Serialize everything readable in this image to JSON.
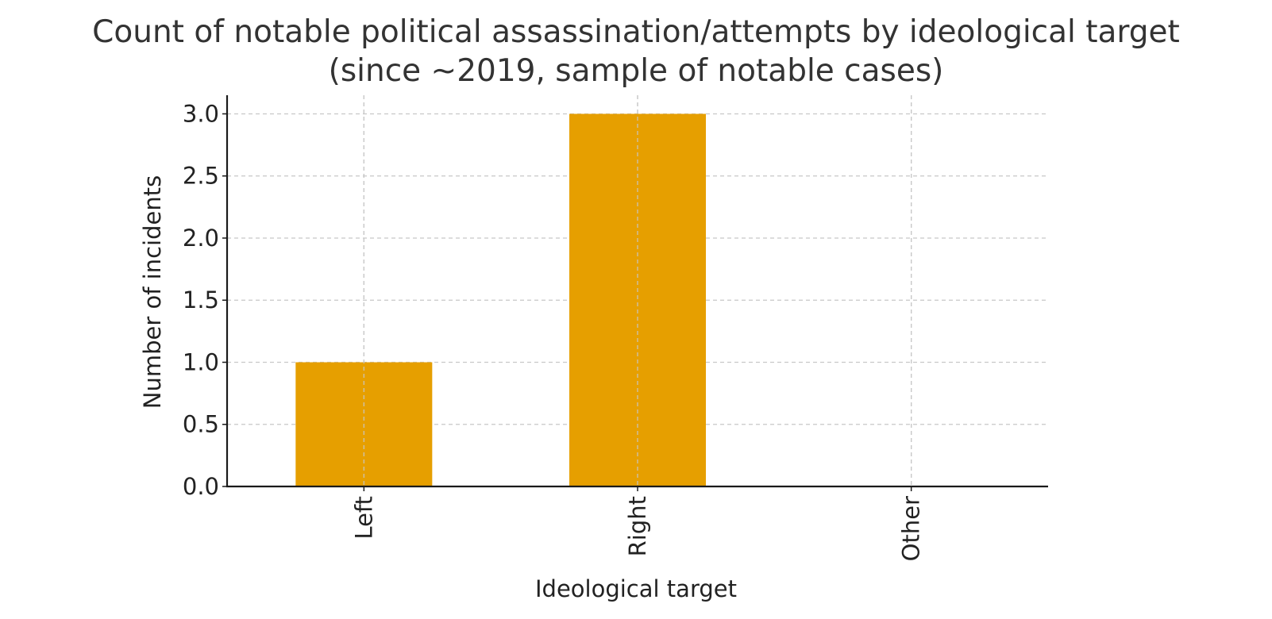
{
  "chart_data": {
    "type": "bar",
    "title": "Count of notable political assassination/attempts by ideological target",
    "subtitle": "(since ~2019, sample of notable cases)",
    "xlabel": "Ideological target",
    "ylabel": "Number of incidents",
    "categories": [
      "Left",
      "Right",
      "Other"
    ],
    "values": [
      1,
      3,
      0
    ],
    "ylim": [
      0,
      3.15
    ],
    "yticks": [
      0.0,
      0.5,
      1.0,
      1.5,
      2.0,
      2.5,
      3.0
    ],
    "ytick_labels": [
      "0.0",
      "0.5",
      "1.0",
      "1.5",
      "2.0",
      "2.5",
      "3.0"
    ],
    "bar_color": "#E69F00",
    "grid": true,
    "x_tick_rotation": "vertical"
  }
}
